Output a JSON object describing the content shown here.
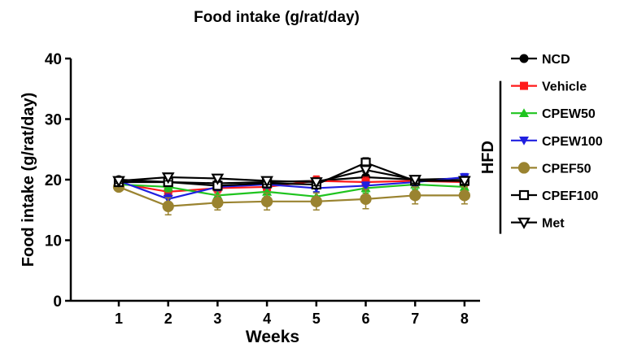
{
  "chart_data": {
    "type": "line",
    "title": "Food intake (g/rat/day)",
    "xlabel": "Weeks",
    "ylabel": "Food intake (g/rat/day)",
    "x": [
      1,
      2,
      3,
      4,
      5,
      6,
      7,
      8
    ],
    "ylim": [
      0,
      40
    ],
    "yticks": [
      0,
      10,
      20,
      30,
      40
    ],
    "grid": false,
    "legend_position": "right",
    "group_label": "HFD",
    "series": [
      {
        "name": "NCD",
        "color": "#000000",
        "marker": "circle",
        "values": [
          20.0,
          19.6,
          19.4,
          19.6,
          19.8,
          20.4,
          20.0,
          20.2
        ],
        "err": [
          0.4,
          0.6,
          0.6,
          0.6,
          0.6,
          0.8,
          0.6,
          0.6
        ]
      },
      {
        "name": "Vehicle",
        "color": "#ff1a1a",
        "marker": "square",
        "values": [
          19.4,
          18.0,
          18.6,
          18.8,
          19.8,
          19.6,
          19.8,
          19.6
        ],
        "err": [
          0.6,
          0.8,
          0.8,
          0.8,
          0.8,
          0.8,
          0.8,
          0.8
        ]
      },
      {
        "name": "CPEW50",
        "color": "#1fc41f",
        "marker": "triangle-up",
        "values": [
          19.2,
          18.8,
          17.4,
          18.0,
          17.2,
          18.6,
          19.2,
          18.8
        ],
        "err": [
          0.6,
          0.8,
          0.8,
          0.8,
          0.8,
          0.8,
          0.8,
          0.8
        ]
      },
      {
        "name": "CPEW100",
        "color": "#1f1fe0",
        "marker": "triangle-down",
        "values": [
          19.8,
          16.8,
          18.8,
          19.2,
          18.6,
          19.0,
          19.6,
          20.4
        ],
        "err": [
          0.6,
          0.8,
          0.6,
          0.6,
          0.6,
          0.6,
          0.6,
          0.6
        ]
      },
      {
        "name": "CPEF50",
        "color": "#9a8330",
        "marker": "circle",
        "values": [
          18.8,
          15.6,
          16.2,
          16.4,
          16.4,
          16.8,
          17.4,
          17.4
        ],
        "err": [
          0.6,
          1.4,
          1.2,
          1.4,
          1.4,
          1.6,
          1.4,
          1.4
        ]
      },
      {
        "name": "CPEF100",
        "color": "#000000",
        "marker": "square-open",
        "values": [
          19.6,
          19.6,
          19.0,
          19.4,
          19.2,
          22.8,
          19.8,
          19.8
        ],
        "err": [
          0.4,
          0.6,
          0.6,
          0.6,
          0.6,
          0.8,
          0.6,
          0.6
        ]
      },
      {
        "name": "Met",
        "color": "#000000",
        "marker": "triangle-down-open",
        "values": [
          19.8,
          20.4,
          20.2,
          19.8,
          19.6,
          21.6,
          20.0,
          19.8
        ],
        "err": [
          0.4,
          0.6,
          0.6,
          0.6,
          0.6,
          0.8,
          0.6,
          0.6
        ]
      }
    ]
  }
}
